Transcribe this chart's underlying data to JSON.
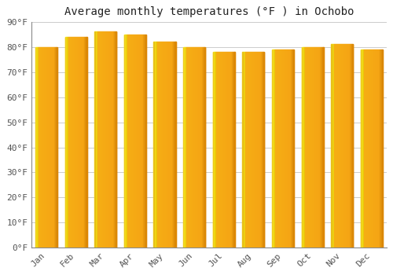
{
  "title": "Average monthly temperatures (°F ) in Ochobo",
  "months": [
    "Jan",
    "Feb",
    "Mar",
    "Apr",
    "May",
    "Jun",
    "Jul",
    "Aug",
    "Sep",
    "Oct",
    "Nov",
    "Dec"
  ],
  "values": [
    80,
    84,
    86,
    85,
    82,
    80,
    78,
    78,
    79,
    80,
    81,
    79
  ],
  "bar_color_main": "#F5A623",
  "bar_color_light": "#FFD966",
  "bar_color_dark": "#E08800",
  "ylim": [
    0,
    90
  ],
  "yticks": [
    0,
    10,
    20,
    30,
    40,
    50,
    60,
    70,
    80,
    90
  ],
  "ytick_labels": [
    "0°F",
    "10°F",
    "20°F",
    "30°F",
    "40°F",
    "50°F",
    "60°F",
    "70°F",
    "80°F",
    "90°F"
  ],
  "background_color": "#FFFFFF",
  "grid_color": "#CCCCCC",
  "title_fontsize": 10,
  "tick_fontsize": 8,
  "bar_width": 0.75
}
